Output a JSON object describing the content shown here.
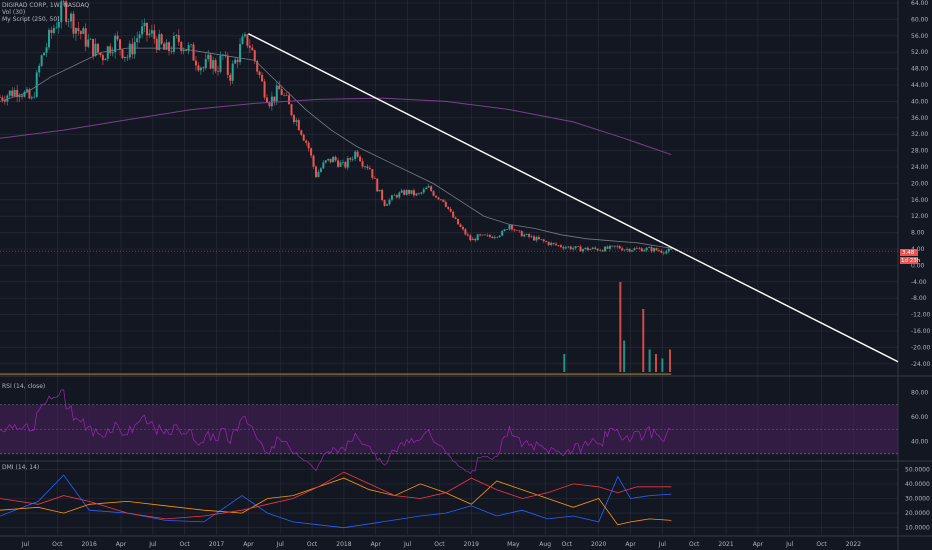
{
  "legend": {
    "main": "DIGIRAD CORP, 1W, NASDAQ",
    "vol": "Vol (30)",
    "script": "My Script (250, 50)",
    "rsi": "RSI (14, close)",
    "dmi": "DMI (14, 14)"
  },
  "price_badges": {
    "last": "3.48",
    "countdown": "1d 23h"
  },
  "colors": {
    "background": "#131722",
    "grid": "#2a2e39",
    "up": "#26a69a",
    "down": "#ef5350",
    "sma": "#787b86",
    "long_ma": "#7b3f8c",
    "trendline": "#ffffff",
    "rsi_line": "#9c27b0",
    "rsi_band": "#4a1f5c",
    "dmi_plus": "#2962ff",
    "dmi_minus": "#ff9800",
    "adx": "#f23645"
  },
  "chart_data": [
    {
      "type": "candlestick",
      "title": "DIGIRAD CORP, 1W, NASDAQ",
      "y_ticks": [
        "64.00",
        "60.00",
        "56.00",
        "52.00",
        "48.00",
        "44.00",
        "40.00",
        "36.00",
        "32.00",
        "28.00",
        "24.00",
        "20.00",
        "16.00",
        "12.00",
        "8.00",
        "4.00",
        "0.00",
        "-4.00",
        "-8.00",
        "-12.00",
        "-16.00",
        "-20.00",
        "-24.00"
      ],
      "ylim": [
        -26,
        64
      ],
      "x_ticks": [
        "Jul",
        "Oct",
        "2016",
        "Apr",
        "Jul",
        "Oct",
        "2017",
        "Apr",
        "Jul",
        "Oct",
        "2018",
        "Apr",
        "Jul",
        "Oct",
        "2019",
        "May",
        "Aug",
        "Oct",
        "2020",
        "Apr",
        "Jul",
        "Oct",
        "2021",
        "Apr",
        "Jul",
        "Oct",
        "2022"
      ],
      "x_tick_dates": [
        2015.5,
        2015.75,
        2016.0,
        2016.25,
        2016.5,
        2016.75,
        2017.0,
        2017.25,
        2017.5,
        2017.75,
        2018.0,
        2018.25,
        2018.5,
        2018.75,
        2019.0,
        2019.33,
        2019.58,
        2019.75,
        2020.0,
        2020.25,
        2020.5,
        2020.75,
        2021.0,
        2021.25,
        2021.5,
        2021.75,
        2022.0
      ],
      "xlim": [
        2015.3,
        2022.35
      ],
      "close_path": [
        [
          2015.3,
          41
        ],
        [
          2015.45,
          43
        ],
        [
          2015.55,
          40
        ],
        [
          2015.62,
          50
        ],
        [
          2015.72,
          58
        ],
        [
          2015.8,
          63
        ],
        [
          2015.9,
          58
        ],
        [
          2016.0,
          54
        ],
        [
          2016.1,
          51
        ],
        [
          2016.2,
          55
        ],
        [
          2016.3,
          51
        ],
        [
          2016.4,
          57
        ],
        [
          2016.5,
          56
        ],
        [
          2016.6,
          52
        ],
        [
          2016.7,
          55
        ],
        [
          2016.8,
          52
        ],
        [
          2016.9,
          48
        ],
        [
          2016.95,
          50
        ],
        [
          2017.0,
          48
        ],
        [
          2017.05,
          51
        ],
        [
          2017.1,
          46
        ],
        [
          2017.15,
          50
        ],
        [
          2017.2,
          54
        ],
        [
          2017.25,
          55
        ],
        [
          2017.3,
          50
        ],
        [
          2017.36,
          44
        ],
        [
          2017.42,
          40
        ],
        [
          2017.5,
          43
        ],
        [
          2017.58,
          38
        ],
        [
          2017.65,
          34
        ],
        [
          2017.72,
          29
        ],
        [
          2017.78,
          22
        ],
        [
          2017.85,
          25
        ],
        [
          2017.92,
          26
        ],
        [
          2018.0,
          24
        ],
        [
          2018.05,
          26
        ],
        [
          2018.1,
          28
        ],
        [
          2018.15,
          25
        ],
        [
          2018.2,
          24
        ],
        [
          2018.26,
          19
        ],
        [
          2018.32,
          15
        ],
        [
          2018.4,
          17
        ],
        [
          2018.5,
          18
        ],
        [
          2018.58,
          17
        ],
        [
          2018.66,
          19
        ],
        [
          2018.72,
          17
        ],
        [
          2018.78,
          16
        ],
        [
          2018.85,
          12
        ],
        [
          2018.92,
          9
        ],
        [
          2019.0,
          6
        ],
        [
          2019.05,
          7
        ],
        [
          2019.15,
          7
        ],
        [
          2019.25,
          8
        ],
        [
          2019.3,
          10
        ],
        [
          2019.36,
          8
        ],
        [
          2019.45,
          7
        ],
        [
          2019.55,
          6
        ],
        [
          2019.65,
          5
        ],
        [
          2019.75,
          4.5
        ],
        [
          2019.85,
          4
        ],
        [
          2019.95,
          4
        ],
        [
          2020.05,
          4
        ],
        [
          2020.15,
          4.5
        ],
        [
          2020.2,
          4
        ],
        [
          2020.3,
          4
        ],
        [
          2020.4,
          4
        ],
        [
          2020.5,
          3.5
        ],
        [
          2020.57,
          3.5
        ]
      ],
      "series": [
        {
          "name": "",
          "type": "sma",
          "points": [
            [
              2015.3,
              40
            ],
            [
              2015.5,
              42
            ],
            [
              2015.7,
              46
            ],
            [
              2015.9,
              49
            ],
            [
              2016.1,
              52
            ],
            [
              2016.3,
              53
            ],
            [
              2016.5,
              53
            ],
            [
              2016.7,
              53
            ],
            [
              2016.9,
              52
            ],
            [
              2017.1,
              51
            ],
            [
              2017.3,
              50
            ],
            [
              2017.5,
              44
            ],
            [
              2017.7,
              38
            ],
            [
              2017.9,
              33
            ],
            [
              2018.1,
              29
            ],
            [
              2018.3,
              26
            ],
            [
              2018.5,
              23
            ],
            [
              2018.7,
              20
            ],
            [
              2018.9,
              16
            ],
            [
              2019.1,
              12
            ],
            [
              2019.3,
              10
            ],
            [
              2019.5,
              9
            ],
            [
              2019.7,
              7.5
            ],
            [
              2019.9,
              6.5
            ],
            [
              2020.1,
              6
            ],
            [
              2020.3,
              5.5
            ],
            [
              2020.5,
              4.5
            ],
            [
              2020.57,
              4.2
            ]
          ]
        },
        {
          "name": "",
          "type": "long_ma",
          "points": [
            [
              2015.3,
              31
            ],
            [
              2015.8,
              33
            ],
            [
              2016.3,
              35.5
            ],
            [
              2016.8,
              38
            ],
            [
              2017.3,
              39.5
            ],
            [
              2017.8,
              40.5
            ],
            [
              2018.3,
              40.8
            ],
            [
              2018.8,
              40
            ],
            [
              2019.3,
              38
            ],
            [
              2019.8,
              35
            ],
            [
              2020.2,
              31
            ],
            [
              2020.57,
              27
            ]
          ]
        }
      ],
      "trendline": [
        [
          2017.25,
          56.5
        ],
        [
          2022.35,
          -23.5
        ]
      ],
      "volume_spikes": [
        [
          2019.73,
          0.2
        ],
        [
          2020.17,
          1.0
        ],
        [
          2020.2,
          0.35
        ],
        [
          2020.35,
          0.7
        ],
        [
          2020.4,
          0.25
        ],
        [
          2020.45,
          0.2
        ],
        [
          2020.5,
          0.15
        ],
        [
          2020.56,
          0.25
        ]
      ]
    },
    {
      "type": "line",
      "title": "RSI (14, close)",
      "y_ticks": [
        "80.00",
        "60.00",
        "40.00"
      ],
      "ylim": [
        25,
        90
      ],
      "band": [
        30,
        70
      ]
    },
    {
      "type": "line",
      "title": "DMI (14, 14)",
      "y_ticks": [
        "50.0000",
        "40.0000",
        "30.0000",
        "20.0000",
        "10.0000"
      ],
      "ylim": [
        5,
        55
      ],
      "series": [
        {
          "name": "",
          "points": [
            [
              2015.3,
              18
            ],
            [
              2015.6,
              28
            ],
            [
              2015.8,
              46
            ],
            [
              2016.0,
              22
            ],
            [
              2016.3,
              20
            ],
            [
              2016.6,
              15
            ],
            [
              2016.9,
              14
            ],
            [
              2017.2,
              32
            ],
            [
              2017.4,
              20
            ],
            [
              2017.6,
              14
            ],
            [
              2017.8,
              12
            ],
            [
              2018.0,
              10
            ],
            [
              2018.3,
              14
            ],
            [
              2018.6,
              18
            ],
            [
              2018.8,
              20
            ],
            [
              2019.0,
              25
            ],
            [
              2019.2,
              18
            ],
            [
              2019.4,
              22
            ],
            [
              2019.6,
              16
            ],
            [
              2019.8,
              18
            ],
            [
              2020.0,
              14
            ],
            [
              2020.15,
              45
            ],
            [
              2020.25,
              30
            ],
            [
              2020.4,
              32
            ],
            [
              2020.57,
              33
            ]
          ]
        },
        {
          "name": "",
          "points": [
            [
              2015.3,
              22
            ],
            [
              2015.6,
              24
            ],
            [
              2015.8,
              20
            ],
            [
              2016.0,
              26
            ],
            [
              2016.3,
              28
            ],
            [
              2016.6,
              25
            ],
            [
              2016.9,
              22
            ],
            [
              2017.2,
              20
            ],
            [
              2017.4,
              30
            ],
            [
              2017.6,
              32
            ],
            [
              2017.8,
              38
            ],
            [
              2018.0,
              44
            ],
            [
              2018.2,
              36
            ],
            [
              2018.4,
              32
            ],
            [
              2018.6,
              40
            ],
            [
              2018.8,
              34
            ],
            [
              2019.0,
              26
            ],
            [
              2019.2,
              42
            ],
            [
              2019.4,
              36
            ],
            [
              2019.6,
              30
            ],
            [
              2019.8,
              24
            ],
            [
              2020.0,
              30
            ],
            [
              2020.15,
              12
            ],
            [
              2020.25,
              14
            ],
            [
              2020.4,
              16
            ],
            [
              2020.57,
              15
            ]
          ]
        },
        {
          "name": "",
          "points": [
            [
              2015.3,
              30
            ],
            [
              2015.6,
              26
            ],
            [
              2015.8,
              32
            ],
            [
              2016.0,
              28
            ],
            [
              2016.3,
              20
            ],
            [
              2016.6,
              16
            ],
            [
              2016.9,
              18
            ],
            [
              2017.2,
              22
            ],
            [
              2017.4,
              26
            ],
            [
              2017.6,
              30
            ],
            [
              2017.8,
              38
            ],
            [
              2018.0,
              48
            ],
            [
              2018.2,
              40
            ],
            [
              2018.4,
              32
            ],
            [
              2018.6,
              30
            ],
            [
              2018.8,
              34
            ],
            [
              2019.0,
              44
            ],
            [
              2019.2,
              36
            ],
            [
              2019.4,
              30
            ],
            [
              2019.6,
              34
            ],
            [
              2019.8,
              40
            ],
            [
              2020.0,
              38
            ],
            [
              2020.15,
              34
            ],
            [
              2020.3,
              38
            ],
            [
              2020.57,
              38
            ]
          ]
        }
      ]
    }
  ]
}
